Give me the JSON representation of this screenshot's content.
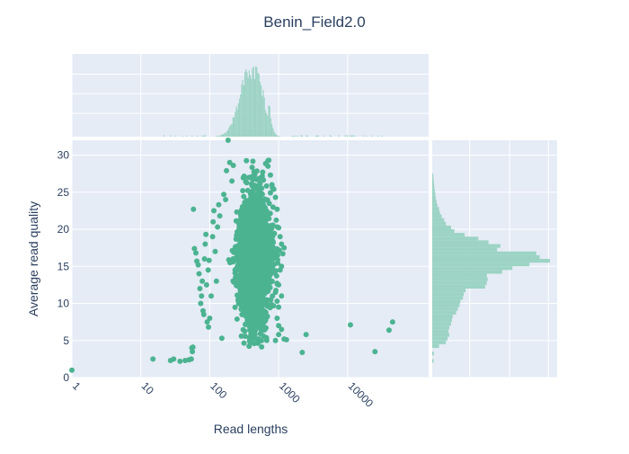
{
  "chart_data": {
    "type": "scatter",
    "title": "Benin_Field2.0",
    "xlabel": "Read lengths",
    "ylabel": "Average read quality",
    "x_scale": "log",
    "xlim": [
      1,
      150000
    ],
    "ylim": [
      0,
      32
    ],
    "x_ticks": [
      {
        "value": 1,
        "label": "1"
      },
      {
        "value": 10,
        "label": "10"
      },
      {
        "value": 100,
        "label": "100"
      },
      {
        "value": 1000,
        "label": "1000"
      },
      {
        "value": 10000,
        "label": "10000"
      }
    ],
    "y_ticks": [
      0,
      5,
      10,
      15,
      20,
      25,
      30
    ],
    "grid": true,
    "plot_background": "#e5ecf6",
    "marker_color": "#4cb391",
    "histogram_color": "#98d2c1",
    "text_color": "#2a3f5f",
    "main_cloud": {
      "x_range": [
        200,
        1000
      ],
      "x_mode": 450,
      "y_range": [
        4,
        29.5
      ],
      "y_mode": 16
    },
    "scatter_points": [
      [
        1,
        1
      ],
      [
        15,
        2.5
      ],
      [
        27,
        2.3
      ],
      [
        30,
        2.5
      ],
      [
        37,
        2.2
      ],
      [
        44,
        2.3
      ],
      [
        50,
        2.4
      ],
      [
        54,
        2.5
      ],
      [
        55,
        4
      ],
      [
        56,
        3.5
      ],
      [
        57,
        4.1
      ],
      [
        58,
        22.7
      ],
      [
        60,
        17.4
      ],
      [
        63,
        16.8
      ],
      [
        65,
        15.7
      ],
      [
        68,
        15.2
      ],
      [
        70,
        14
      ],
      [
        72,
        12
      ],
      [
        74,
        10
      ],
      [
        76,
        11
      ],
      [
        78,
        13
      ],
      [
        80,
        9
      ],
      [
        82,
        8.5
      ],
      [
        84,
        16
      ],
      [
        86,
        18
      ],
      [
        88,
        19.3
      ],
      [
        90,
        12.5
      ],
      [
        95,
        14.5
      ],
      [
        98,
        15.8
      ],
      [
        92,
        7.5
      ],
      [
        96,
        6.8
      ],
      [
        100,
        8
      ],
      [
        105,
        11
      ],
      [
        110,
        19
      ],
      [
        112,
        21
      ],
      [
        115,
        22.5
      ],
      [
        120,
        17
      ],
      [
        125,
        13
      ],
      [
        130,
        20.3
      ],
      [
        135,
        23.3
      ],
      [
        140,
        21.8
      ],
      [
        150,
        5.3
      ],
      [
        160,
        24.7
      ],
      [
        170,
        24
      ],
      [
        175,
        27.9
      ],
      [
        185,
        32
      ],
      [
        195,
        29
      ],
      [
        210,
        26.5
      ],
      [
        220,
        28.6
      ],
      [
        700,
        28.5
      ],
      [
        720,
        29.3
      ],
      [
        760,
        27.3
      ],
      [
        800,
        26
      ],
      [
        850,
        25.4
      ],
      [
        900,
        24.3
      ],
      [
        950,
        22.7
      ],
      [
        1000,
        20.2
      ],
      [
        1050,
        19
      ],
      [
        1100,
        18
      ],
      [
        1150,
        16.7
      ],
      [
        1200,
        17.5
      ],
      [
        1100,
        15
      ],
      [
        1050,
        14.5
      ],
      [
        1000,
        12.5
      ],
      [
        1100,
        11
      ],
      [
        950,
        10.3
      ],
      [
        900,
        11.5
      ],
      [
        1000,
        9.5
      ],
      [
        950,
        8
      ],
      [
        1000,
        7
      ],
      [
        900,
        5
      ],
      [
        1300,
        5.1
      ],
      [
        1200,
        5.2
      ],
      [
        1000,
        5.8
      ],
      [
        1100,
        6.5
      ],
      [
        2500,
        5.8
      ],
      [
        2200,
        3.4
      ],
      [
        11000,
        7.1
      ],
      [
        25000,
        3.5
      ],
      [
        40000,
        6.4
      ],
      [
        45000,
        7.5
      ]
    ],
    "histograms": {
      "top_x": {
        "orientation": "vertical",
        "description": "distribution of read lengths",
        "log_center": 2.6,
        "log_spread": 0.16,
        "peak_value": 1000
      },
      "right_y": {
        "orientation": "horizontal",
        "bin_width": 0.5,
        "bins": [
          {
            "y": 2.25,
            "count": 8
          },
          {
            "y": 3.25,
            "count": 10
          },
          {
            "y": 4.25,
            "count": 40
          },
          {
            "y": 4.75,
            "count": 80
          },
          {
            "y": 5.25,
            "count": 90
          },
          {
            "y": 5.75,
            "count": 100
          },
          {
            "y": 6.25,
            "count": 95
          },
          {
            "y": 6.75,
            "count": 100
          },
          {
            "y": 7.25,
            "count": 110
          },
          {
            "y": 7.75,
            "count": 115
          },
          {
            "y": 8.25,
            "count": 120
          },
          {
            "y": 8.75,
            "count": 140
          },
          {
            "y": 9.25,
            "count": 150
          },
          {
            "y": 9.75,
            "count": 160
          },
          {
            "y": 10.25,
            "count": 165
          },
          {
            "y": 10.75,
            "count": 180
          },
          {
            "y": 11.25,
            "count": 185
          },
          {
            "y": 11.75,
            "count": 195
          },
          {
            "y": 12.25,
            "count": 310
          },
          {
            "y": 12.75,
            "count": 320
          },
          {
            "y": 13.25,
            "count": 325
          },
          {
            "y": 13.75,
            "count": 320
          },
          {
            "y": 14.25,
            "count": 410
          },
          {
            "y": 14.75,
            "count": 470
          },
          {
            "y": 15.25,
            "count": 570
          },
          {
            "y": 15.75,
            "count": 690
          },
          {
            "y": 16.25,
            "count": 630
          },
          {
            "y": 16.75,
            "count": 610
          },
          {
            "y": 17.25,
            "count": 380
          },
          {
            "y": 17.75,
            "count": 400
          },
          {
            "y": 18.25,
            "count": 330
          },
          {
            "y": 18.75,
            "count": 270
          },
          {
            "y": 19.25,
            "count": 190
          },
          {
            "y": 19.75,
            "count": 130
          },
          {
            "y": 20.25,
            "count": 110
          },
          {
            "y": 20.75,
            "count": 80
          },
          {
            "y": 21.25,
            "count": 70
          },
          {
            "y": 21.75,
            "count": 55
          },
          {
            "y": 22.25,
            "count": 45
          },
          {
            "y": 22.75,
            "count": 40
          },
          {
            "y": 23.25,
            "count": 30
          },
          {
            "y": 23.75,
            "count": 25
          },
          {
            "y": 24.25,
            "count": 20
          },
          {
            "y": 24.75,
            "count": 18
          },
          {
            "y": 25.25,
            "count": 15
          },
          {
            "y": 25.75,
            "count": 12
          },
          {
            "y": 26.25,
            "count": 10
          },
          {
            "y": 26.75,
            "count": 8
          },
          {
            "y": 27.25,
            "count": 6
          }
        ]
      }
    }
  }
}
